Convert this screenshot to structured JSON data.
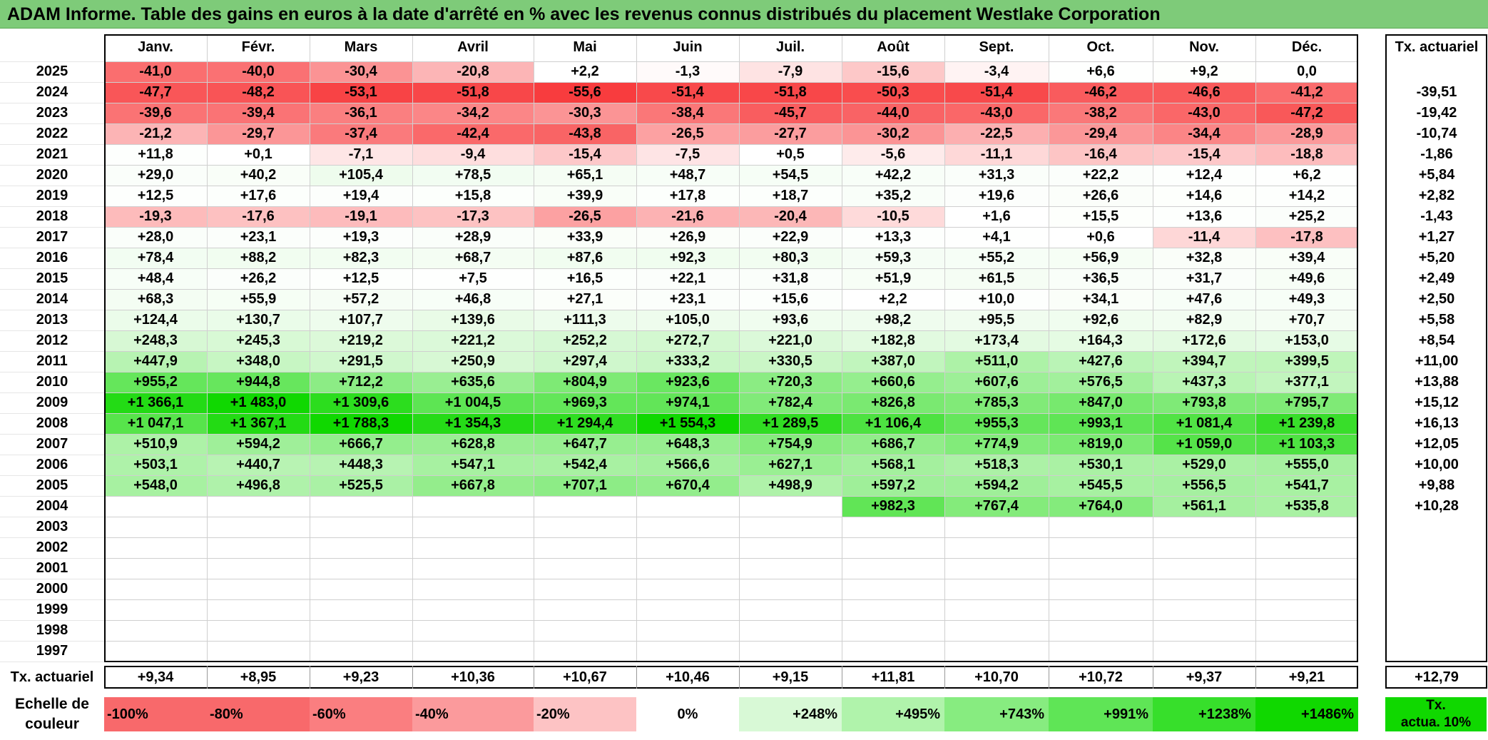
{
  "title": "ADAM Informe. Table des gains en euros à la date d'arrêté en % avec les revenus connus distribués du placement Westlake Corporation",
  "chart_data": {
    "type": "table",
    "months": [
      "Janv.",
      "Févr.",
      "Mars",
      "Avril",
      "Mai",
      "Juin",
      "Juil.",
      "Août",
      "Sept.",
      "Oct.",
      "Nov.",
      "Déc."
    ],
    "actuarial_header": "Tx. actuariel",
    "rows": [
      {
        "year": "2025",
        "values": [
          "-41,0",
          "-40,0",
          "-30,4",
          "-20,8",
          "+2,2",
          "-1,3",
          "-7,9",
          "-15,6",
          "-3,4",
          "+6,6",
          "+9,2",
          "0,0"
        ],
        "rate": ""
      },
      {
        "year": "2024",
        "values": [
          "-47,7",
          "-48,2",
          "-53,1",
          "-51,8",
          "-55,6",
          "-51,4",
          "-51,8",
          "-50,3",
          "-51,4",
          "-46,2",
          "-46,6",
          "-41,2"
        ],
        "rate": "-39,51"
      },
      {
        "year": "2023",
        "values": [
          "-39,6",
          "-39,4",
          "-36,1",
          "-34,2",
          "-30,3",
          "-38,4",
          "-45,7",
          "-44,0",
          "-43,0",
          "-38,2",
          "-43,0",
          "-47,2"
        ],
        "rate": "-19,42"
      },
      {
        "year": "2022",
        "values": [
          "-21,2",
          "-29,7",
          "-37,4",
          "-42,4",
          "-43,8",
          "-26,5",
          "-27,7",
          "-30,2",
          "-22,5",
          "-29,4",
          "-34,4",
          "-28,9"
        ],
        "rate": "-10,74"
      },
      {
        "year": "2021",
        "values": [
          "+11,8",
          "+0,1",
          "-7,1",
          "-9,4",
          "-15,4",
          "-7,5",
          "+0,5",
          "-5,6",
          "-11,1",
          "-16,4",
          "-15,4",
          "-18,8"
        ],
        "rate": "-1,86"
      },
      {
        "year": "2020",
        "values": [
          "+29,0",
          "+40,2",
          "+105,4",
          "+78,5",
          "+65,1",
          "+48,7",
          "+54,5",
          "+42,2",
          "+31,3",
          "+22,2",
          "+12,4",
          "+6,2"
        ],
        "rate": "+5,84"
      },
      {
        "year": "2019",
        "values": [
          "+12,5",
          "+17,6",
          "+19,4",
          "+15,8",
          "+39,9",
          "+17,8",
          "+18,7",
          "+35,2",
          "+19,6",
          "+26,6",
          "+14,6",
          "+14,2"
        ],
        "rate": "+2,82"
      },
      {
        "year": "2018",
        "values": [
          "-19,3",
          "-17,6",
          "-19,1",
          "-17,3",
          "-26,5",
          "-21,6",
          "-20,4",
          "-10,5",
          "+1,6",
          "+15,5",
          "+13,6",
          "+25,2"
        ],
        "rate": "-1,43"
      },
      {
        "year": "2017",
        "values": [
          "+28,0",
          "+23,1",
          "+19,3",
          "+28,9",
          "+33,9",
          "+26,9",
          "+22,9",
          "+13,3",
          "+4,1",
          "+0,6",
          "-11,4",
          "-17,8"
        ],
        "rate": "+1,27"
      },
      {
        "year": "2016",
        "values": [
          "+78,4",
          "+88,2",
          "+82,3",
          "+68,7",
          "+87,6",
          "+92,3",
          "+80,3",
          "+59,3",
          "+55,2",
          "+56,9",
          "+32,8",
          "+39,4"
        ],
        "rate": "+5,20"
      },
      {
        "year": "2015",
        "values": [
          "+48,4",
          "+26,2",
          "+12,5",
          "+7,5",
          "+16,5",
          "+22,1",
          "+31,8",
          "+51,9",
          "+61,5",
          "+36,5",
          "+31,7",
          "+49,6"
        ],
        "rate": "+2,49"
      },
      {
        "year": "2014",
        "values": [
          "+68,3",
          "+55,9",
          "+57,2",
          "+46,8",
          "+27,1",
          "+23,1",
          "+15,6",
          "+2,2",
          "+10,0",
          "+34,1",
          "+47,6",
          "+49,3"
        ],
        "rate": "+2,50"
      },
      {
        "year": "2013",
        "values": [
          "+124,4",
          "+130,7",
          "+107,7",
          "+139,6",
          "+111,3",
          "+105,0",
          "+93,6",
          "+98,2",
          "+95,5",
          "+92,6",
          "+82,9",
          "+70,7"
        ],
        "rate": "+5,58"
      },
      {
        "year": "2012",
        "values": [
          "+248,3",
          "+245,3",
          "+219,2",
          "+221,2",
          "+252,2",
          "+272,7",
          "+221,0",
          "+182,8",
          "+173,4",
          "+164,3",
          "+172,6",
          "+153,0"
        ],
        "rate": "+8,54"
      },
      {
        "year": "2011",
        "values": [
          "+447,9",
          "+348,0",
          "+291,5",
          "+250,9",
          "+297,4",
          "+333,2",
          "+330,5",
          "+387,0",
          "+511,0",
          "+427,6",
          "+394,7",
          "+399,5"
        ],
        "rate": "+11,00"
      },
      {
        "year": "2010",
        "values": [
          "+955,2",
          "+944,8",
          "+712,2",
          "+635,6",
          "+804,9",
          "+923,6",
          "+720,3",
          "+660,6",
          "+607,6",
          "+576,5",
          "+437,3",
          "+377,1"
        ],
        "rate": "+13,88"
      },
      {
        "year": "2009",
        "values": [
          "+1 366,1",
          "+1 483,0",
          "+1 309,6",
          "+1 004,5",
          "+969,3",
          "+974,1",
          "+782,4",
          "+826,8",
          "+785,3",
          "+847,0",
          "+793,8",
          "+795,7"
        ],
        "rate": "+15,12"
      },
      {
        "year": "2008",
        "values": [
          "+1 047,1",
          "+1 367,1",
          "+1 788,3",
          "+1 354,3",
          "+1 294,4",
          "+1 554,3",
          "+1 289,5",
          "+1 106,4",
          "+955,3",
          "+993,1",
          "+1 081,4",
          "+1 239,8"
        ],
        "rate": "+16,13"
      },
      {
        "year": "2007",
        "values": [
          "+510,9",
          "+594,2",
          "+666,7",
          "+628,8",
          "+647,7",
          "+648,3",
          "+754,9",
          "+686,7",
          "+774,9",
          "+819,0",
          "+1 059,0",
          "+1 103,3"
        ],
        "rate": "+12,05"
      },
      {
        "year": "2006",
        "values": [
          "+503,1",
          "+440,7",
          "+448,3",
          "+547,1",
          "+542,4",
          "+566,6",
          "+627,1",
          "+568,1",
          "+518,3",
          "+530,1",
          "+529,0",
          "+555,0"
        ],
        "rate": "+10,00"
      },
      {
        "year": "2005",
        "values": [
          "+548,0",
          "+496,8",
          "+525,5",
          "+667,8",
          "+707,1",
          "+670,4",
          "+498,9",
          "+597,2",
          "+594,2",
          "+545,5",
          "+556,5",
          "+541,7"
        ],
        "rate": "+9,88"
      },
      {
        "year": "2004",
        "values": [
          "",
          "",
          "",
          "",
          "",
          "",
          "",
          "+982,3",
          "+767,4",
          "+764,0",
          "+561,1",
          "+535,8"
        ],
        "rate": "+10,28"
      },
      {
        "year": "2003",
        "values": [
          "",
          "",
          "",
          "",
          "",
          "",
          "",
          "",
          "",
          "",
          "",
          ""
        ],
        "rate": ""
      },
      {
        "year": "2002",
        "values": [
          "",
          "",
          "",
          "",
          "",
          "",
          "",
          "",
          "",
          "",
          "",
          ""
        ],
        "rate": ""
      },
      {
        "year": "2001",
        "values": [
          "",
          "",
          "",
          "",
          "",
          "",
          "",
          "",
          "",
          "",
          "",
          ""
        ],
        "rate": ""
      },
      {
        "year": "2000",
        "values": [
          "",
          "",
          "",
          "",
          "",
          "",
          "",
          "",
          "",
          "",
          "",
          ""
        ],
        "rate": ""
      },
      {
        "year": "1999",
        "values": [
          "",
          "",
          "",
          "",
          "",
          "",
          "",
          "",
          "",
          "",
          "",
          ""
        ],
        "rate": ""
      },
      {
        "year": "1998",
        "values": [
          "",
          "",
          "",
          "",
          "",
          "",
          "",
          "",
          "",
          "",
          "",
          ""
        ],
        "rate": ""
      },
      {
        "year": "1997",
        "values": [
          "",
          "",
          "",
          "",
          "",
          "",
          "",
          "",
          "",
          "",
          "",
          ""
        ],
        "rate": ""
      }
    ],
    "footer": {
      "label": "Tx. actuariel",
      "values": [
        "+9,34",
        "+8,95",
        "+9,23",
        "+10,36",
        "+10,67",
        "+10,46",
        "+9,15",
        "+11,81",
        "+10,70",
        "+10,72",
        "+9,37",
        "+9,21"
      ],
      "total": "+12,79"
    },
    "scale": {
      "label_line1": "Echelle de",
      "label_line2": "couleur",
      "items": [
        {
          "text": "-100%",
          "color": "#f8696b",
          "align": "left"
        },
        {
          "text": "-80%",
          "color": "#f8696b",
          "align": "left"
        },
        {
          "text": "-60%",
          "color": "#fa7e80",
          "align": "left"
        },
        {
          "text": "-40%",
          "color": "#fb9a9c",
          "align": "left"
        },
        {
          "text": "-20%",
          "color": "#fdc3c4",
          "align": "left"
        },
        {
          "text": "0%",
          "color": "#ffffff",
          "align": "center"
        },
        {
          "text": "+248%",
          "color": "#d8f9d6",
          "align": "right"
        },
        {
          "text": "+495%",
          "color": "#b0f3ab",
          "align": "right"
        },
        {
          "text": "+743%",
          "color": "#87ec80",
          "align": "right"
        },
        {
          "text": "+991%",
          "color": "#5fe556",
          "align": "right"
        },
        {
          "text": "+1238%",
          "color": "#37df2b",
          "align": "right"
        },
        {
          "text": "+1486%",
          "color": "#10d800",
          "align": "right"
        }
      ],
      "last_line1": "Tx.",
      "last_line2": "actua. 10%",
      "last_color": "#10d800"
    }
  }
}
